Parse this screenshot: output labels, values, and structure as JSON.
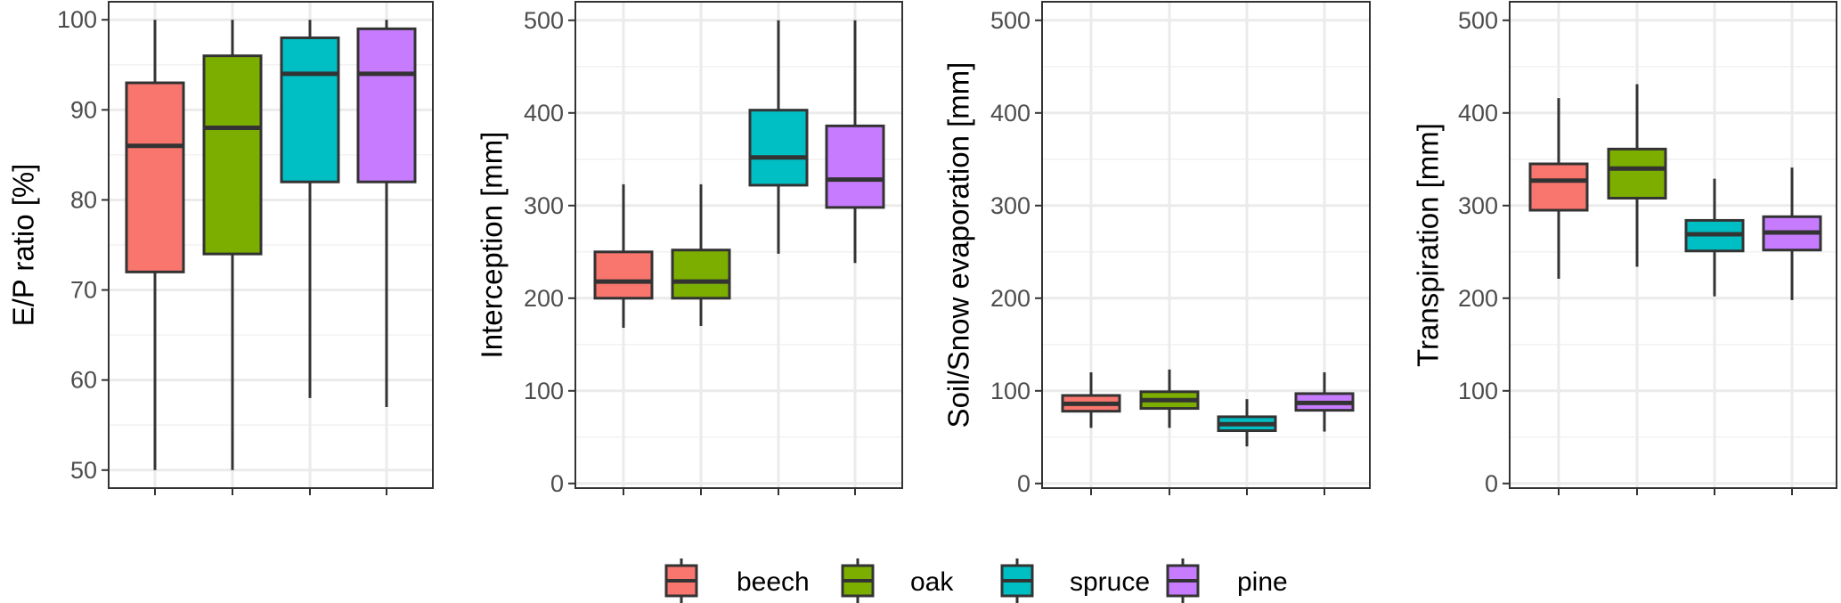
{
  "legend": {
    "items": [
      {
        "label": "beech",
        "color": "#F8766D"
      },
      {
        "label": "oak",
        "color": "#7CAE00"
      },
      {
        "label": "spruce",
        "color": "#00BFC4"
      },
      {
        "label": "pine",
        "color": "#C77CFF"
      }
    ]
  },
  "chart_data": [
    {
      "type": "boxplot",
      "ylabel": "E/P ratio [%]",
      "ylim": [
        48,
        102
      ],
      "yticks": [
        50,
        60,
        70,
        80,
        90,
        100
      ],
      "grid": true,
      "categories": [
        "beech",
        "oak",
        "spruce",
        "pine"
      ],
      "boxes": [
        {
          "category": "beech",
          "min": 50,
          "q1": 72,
          "median": 86,
          "q3": 93,
          "max": 100
        },
        {
          "category": "oak",
          "min": 50,
          "q1": 74,
          "median": 88,
          "q3": 96,
          "max": 100
        },
        {
          "category": "spruce",
          "min": 58,
          "q1": 82,
          "median": 94,
          "q3": 98,
          "max": 100
        },
        {
          "category": "pine",
          "min": 57,
          "q1": 82,
          "median": 94,
          "q3": 99,
          "max": 100
        }
      ]
    },
    {
      "type": "boxplot",
      "ylabel": "Interception [mm]",
      "ylim": [
        -5,
        520
      ],
      "yticks": [
        0,
        100,
        200,
        300,
        400,
        500
      ],
      "grid": true,
      "categories": [
        "beech",
        "oak",
        "spruce",
        "pine"
      ],
      "boxes": [
        {
          "category": "beech",
          "min": 168,
          "q1": 200,
          "median": 218,
          "q3": 250,
          "max": 323
        },
        {
          "category": "oak",
          "min": 170,
          "q1": 200,
          "median": 218,
          "q3": 252,
          "max": 323
        },
        {
          "category": "spruce",
          "min": 248,
          "q1": 322,
          "median": 352,
          "q3": 403,
          "max": 500
        },
        {
          "category": "pine",
          "min": 238,
          "q1": 298,
          "median": 328,
          "q3": 386,
          "max": 500
        }
      ]
    },
    {
      "type": "boxplot",
      "ylabel": "Soil/Snow evaporation [mm]",
      "ylim": [
        -5,
        520
      ],
      "yticks": [
        0,
        100,
        200,
        300,
        400,
        500
      ],
      "grid": true,
      "categories": [
        "beech",
        "oak",
        "spruce",
        "pine"
      ],
      "boxes": [
        {
          "category": "beech",
          "min": 60,
          "q1": 78,
          "median": 86,
          "q3": 95,
          "max": 120
        },
        {
          "category": "oak",
          "min": 60,
          "q1": 81,
          "median": 90,
          "q3": 99,
          "max": 123
        },
        {
          "category": "spruce",
          "min": 40,
          "q1": 57,
          "median": 64,
          "q3": 72,
          "max": 91
        },
        {
          "category": "pine",
          "min": 56,
          "q1": 79,
          "median": 87,
          "q3": 97,
          "max": 120
        }
      ]
    },
    {
      "type": "boxplot",
      "ylabel": "Transpiration [mm]",
      "ylim": [
        -5,
        520
      ],
      "yticks": [
        0,
        100,
        200,
        300,
        400,
        500
      ],
      "grid": true,
      "categories": [
        "beech",
        "oak",
        "spruce",
        "pine"
      ],
      "boxes": [
        {
          "category": "beech",
          "min": 221,
          "q1": 295,
          "median": 327,
          "q3": 345,
          "max": 416
        },
        {
          "category": "oak",
          "min": 234,
          "q1": 308,
          "median": 340,
          "q3": 361,
          "max": 431
        },
        {
          "category": "spruce",
          "min": 202,
          "q1": 251,
          "median": 269,
          "q3": 284,
          "max": 329
        },
        {
          "category": "pine",
          "min": 198,
          "q1": 252,
          "median": 271,
          "q3": 288,
          "max": 341
        }
      ]
    }
  ]
}
